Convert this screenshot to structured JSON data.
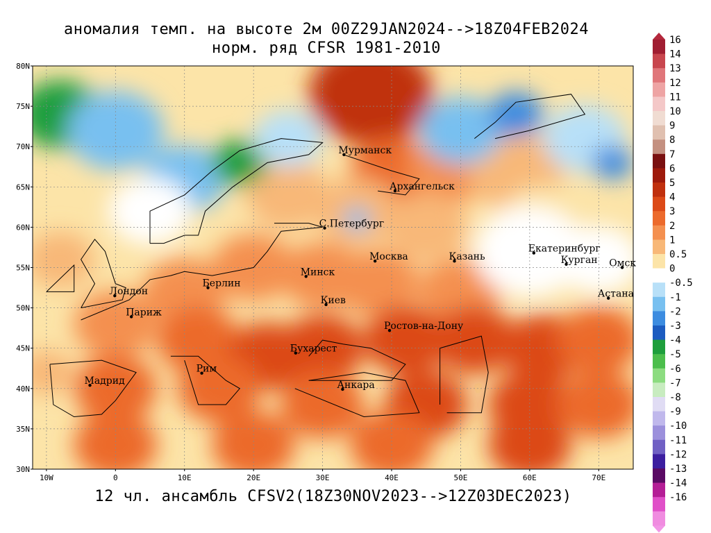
{
  "titles": {
    "line1": "аномалия темп. на высоте 2м 00Z29JAN2024-->18Z04FEB2024",
    "line2": "норм. ряд CFSR 1981-2010",
    "bottom": "12 чл. ансамбль CFSV2(18Z30NOV2023-->12Z03DEC2023)"
  },
  "axes": {
    "lat_labels": [
      "80N",
      "75N",
      "70N",
      "65N",
      "60N",
      "55N",
      "50N",
      "45N",
      "40N",
      "35N",
      "30N"
    ],
    "lat_values": [
      80,
      75,
      70,
      65,
      60,
      55,
      50,
      45,
      40,
      35,
      30
    ],
    "lon_labels": [
      "10W",
      "0",
      "10E",
      "20E",
      "30E",
      "40E",
      "50E",
      "60E",
      "70E"
    ],
    "lon_values": [
      -10,
      0,
      10,
      20,
      30,
      40,
      50,
      60,
      70
    ],
    "lon_range": [
      -12,
      75
    ],
    "lat_range": [
      30,
      80
    ]
  },
  "cities": [
    {
      "name": "Мурманск",
      "lon": 33.1,
      "lat": 69.0
    },
    {
      "name": "Архангельск",
      "lon": 40.5,
      "lat": 64.5
    },
    {
      "name": "С.Петербург",
      "lon": 30.3,
      "lat": 59.9
    },
    {
      "name": "Москва",
      "lon": 37.6,
      "lat": 55.8
    },
    {
      "name": "Казань",
      "lon": 49.1,
      "lat": 55.8
    },
    {
      "name": "Екатеринбург",
      "lon": 60.6,
      "lat": 56.8
    },
    {
      "name": "Курган",
      "lon": 65.3,
      "lat": 55.4
    },
    {
      "name": "Омск",
      "lon": 73.4,
      "lat": 55.0
    },
    {
      "name": "Астана",
      "lon": 71.4,
      "lat": 51.2
    },
    {
      "name": "Минск",
      "lon": 27.6,
      "lat": 53.9
    },
    {
      "name": "Киев",
      "lon": 30.5,
      "lat": 50.4
    },
    {
      "name": "Берлин",
      "lon": 13.4,
      "lat": 52.5
    },
    {
      "name": "Лондон",
      "lon": -0.1,
      "lat": 51.5
    },
    {
      "name": "Париж",
      "lon": 2.3,
      "lat": 48.9
    },
    {
      "name": "Ростов-на-Дону",
      "lon": 39.7,
      "lat": 47.2
    },
    {
      "name": "Бухарест",
      "lon": 26.1,
      "lat": 44.4
    },
    {
      "name": "Рим",
      "lon": 12.5,
      "lat": 41.9
    },
    {
      "name": "Мадрид",
      "lon": -3.7,
      "lat": 40.4
    },
    {
      "name": "Анкара",
      "lon": 32.9,
      "lat": 39.9
    }
  ],
  "colorbar": {
    "labels": [
      "16",
      "14",
      "13",
      "12",
      "11",
      "10",
      "9",
      "8",
      "7",
      "6",
      "5",
      "4",
      "3",
      "2",
      "1",
      "0.5",
      "0",
      "-0.5",
      "-1",
      "-2",
      "-3",
      "-4",
      "-5",
      "-6",
      "-7",
      "-8",
      "-9",
      "-10",
      "-11",
      "-12",
      "-13",
      "-14",
      "-16"
    ],
    "colors": [
      "#a01e32",
      "#c8464e",
      "#e0767a",
      "#eea4a4",
      "#f4c8c8",
      "#f0dcd2",
      "#e0c0b0",
      "#c49080",
      "#7a1010",
      "#9e1a0c",
      "#c0300e",
      "#dc4a18",
      "#ec6a2c",
      "#f49050",
      "#f8b878",
      "#fce4a8",
      "#ffffff",
      "#b8e0f8",
      "#78c0f0",
      "#3c8ce0",
      "#1c5cc0",
      "#1e9e3c",
      "#4cbe4c",
      "#8cdc80",
      "#c8ecc0",
      "#e0dcf4",
      "#c0b8ec",
      "#9c90dc",
      "#7060c4",
      "#3c1ea0",
      "#5a0a64",
      "#b41e96",
      "#e050c8",
      "#f08ce0"
    ],
    "top_arrow": "#b4283c",
    "bottom_arrow": "#f296e6"
  },
  "anomaly_fields": [
    {
      "lon": 37,
      "lat": 76.5,
      "value": 5.5,
      "r": 9
    },
    {
      "lon": 40,
      "lat": 67,
      "value": 3.5,
      "r": 6
    },
    {
      "lon": 48,
      "lat": 67,
      "value": 2.5,
      "r": 6
    },
    {
      "lon": 58,
      "lat": 67,
      "value": 1.5,
      "r": 7
    },
    {
      "lon": 25,
      "lat": 64,
      "value": 1.5,
      "r": 6
    },
    {
      "lon": 35,
      "lat": 62,
      "value": 1.5,
      "r": 6
    },
    {
      "lon": 45,
      "lat": 60,
      "value": 1,
      "r": 6
    },
    {
      "lon": 62,
      "lat": 61,
      "value": 0.5,
      "r": 6
    },
    {
      "lon": 20,
      "lat": 55,
      "value": 2.5,
      "r": 6
    },
    {
      "lon": 30,
      "lat": 54,
      "value": 2,
      "r": 6
    },
    {
      "lon": 38,
      "lat": 53,
      "value": 2,
      "r": 6
    },
    {
      "lon": 50,
      "lat": 52,
      "value": 2,
      "r": 6
    },
    {
      "lon": 10,
      "lat": 52,
      "value": 2.5,
      "r": 6
    },
    {
      "lon": 0,
      "lat": 48,
      "value": 2.5,
      "r": 6
    },
    {
      "lon": 12,
      "lat": 46,
      "value": 3.5,
      "r": 6
    },
    {
      "lon": 22,
      "lat": 44,
      "value": 4,
      "r": 6
    },
    {
      "lon": 30,
      "lat": 45,
      "value": 4,
      "r": 6
    },
    {
      "lon": 42,
      "lat": 46,
      "value": 4.5,
      "r": 6
    },
    {
      "lon": 52,
      "lat": 46,
      "value": 4.5,
      "r": 6
    },
    {
      "lon": 62,
      "lat": 45,
      "value": 4,
      "r": 6
    },
    {
      "lon": 70,
      "lat": 46,
      "value": 3.5,
      "r": 6
    },
    {
      "lon": 0,
      "lat": 40,
      "value": 3,
      "r": 6
    },
    {
      "lon": 15,
      "lat": 40,
      "value": 3.5,
      "r": 6
    },
    {
      "lon": 30,
      "lat": 38,
      "value": 3.5,
      "r": 6
    },
    {
      "lon": 45,
      "lat": 38,
      "value": 4,
      "r": 6
    },
    {
      "lon": 60,
      "lat": 38,
      "value": 4,
      "r": 6
    },
    {
      "lon": 70,
      "lat": 38,
      "value": 3.5,
      "r": 6
    },
    {
      "lon": 0,
      "lat": 33,
      "value": 3,
      "r": 6
    },
    {
      "lon": 20,
      "lat": 33,
      "value": 3,
      "r": 6
    },
    {
      "lon": 40,
      "lat": 33,
      "value": 3.5,
      "r": 6
    },
    {
      "lon": 60,
      "lat": 33,
      "value": 4,
      "r": 6
    },
    {
      "lon": -8,
      "lat": 56,
      "value": 1,
      "r": 5
    },
    {
      "lon": -10,
      "lat": 42,
      "value": 1.5,
      "r": 4
    },
    {
      "lon": -8,
      "lat": 74,
      "value": -3.5,
      "r": 6
    },
    {
      "lon": 0,
      "lat": 72,
      "value": -1.5,
      "r": 7
    },
    {
      "lon": 10,
      "lat": 66,
      "value": -2,
      "r": 6
    },
    {
      "lon": 18,
      "lat": 68,
      "value": -3.5,
      "r": 4
    },
    {
      "lon": 25,
      "lat": 71,
      "value": -1,
      "r": 5
    },
    {
      "lon": 50,
      "lat": 72,
      "value": -1.5,
      "r": 6
    },
    {
      "lon": 58,
      "lat": 74,
      "value": -3,
      "r": 4
    },
    {
      "lon": 68,
      "lat": 71,
      "value": -1,
      "r": 6
    },
    {
      "lon": 72,
      "lat": 68,
      "value": -2.5,
      "r": 3
    },
    {
      "lon": 35,
      "lat": 61,
      "value": -2,
      "r": 2
    },
    {
      "lon": 60,
      "lat": 57,
      "value": 0,
      "r": 8
    },
    {
      "lon": 70,
      "lat": 56,
      "value": 0,
      "r": 6
    },
    {
      "lon": 5,
      "lat": 62,
      "value": -0.5,
      "r": 6
    }
  ]
}
